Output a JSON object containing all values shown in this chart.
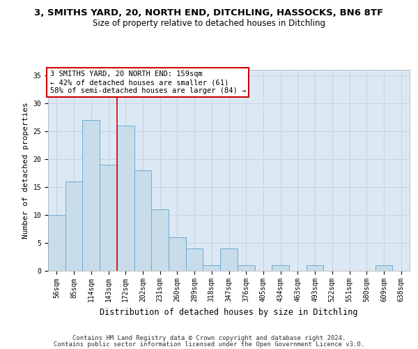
{
  "title_line1": "3, SMITHS YARD, 20, NORTH END, DITCHLING, HASSOCKS, BN6 8TF",
  "title_line2": "Size of property relative to detached houses in Ditchling",
  "xlabel": "Distribution of detached houses by size in Ditchling",
  "ylabel": "Number of detached properties",
  "bar_labels": [
    "56sqm",
    "85sqm",
    "114sqm",
    "143sqm",
    "172sqm",
    "202sqm",
    "231sqm",
    "260sqm",
    "289sqm",
    "318sqm",
    "347sqm",
    "376sqm",
    "405sqm",
    "434sqm",
    "463sqm",
    "493sqm",
    "522sqm",
    "551sqm",
    "580sqm",
    "609sqm",
    "638sqm"
  ],
  "bar_values": [
    10,
    16,
    27,
    19,
    26,
    18,
    11,
    6,
    4,
    1,
    4,
    1,
    0,
    1,
    0,
    1,
    0,
    0,
    0,
    1,
    0
  ],
  "bar_color": "#c9dcea",
  "bar_edgecolor": "#6bacd4",
  "grid_color": "#c8d4e0",
  "background_color": "#dce9f5",
  "vline_x": 3.5,
  "vline_color": "#cc0000",
  "annotation_text": "3 SMITHS YARD, 20 NORTH END: 159sqm\n← 42% of detached houses are smaller (61)\n58% of semi-detached houses are larger (84) →",
  "annotation_box_edgecolor": "#cc0000",
  "annotation_box_facecolor": "#ffffff",
  "ylim": [
    0,
    36
  ],
  "yticks": [
    0,
    5,
    10,
    15,
    20,
    25,
    30,
    35
  ],
  "footer_line1": "Contains HM Land Registry data © Crown copyright and database right 2024.",
  "footer_line2": "Contains public sector information licensed under the Open Government Licence v3.0.",
  "title_fontsize": 9.5,
  "subtitle_fontsize": 8.5,
  "ylabel_fontsize": 8,
  "xlabel_fontsize": 8.5,
  "tick_fontsize": 7,
  "annotation_fontsize": 7.5,
  "footer_fontsize": 6.5
}
